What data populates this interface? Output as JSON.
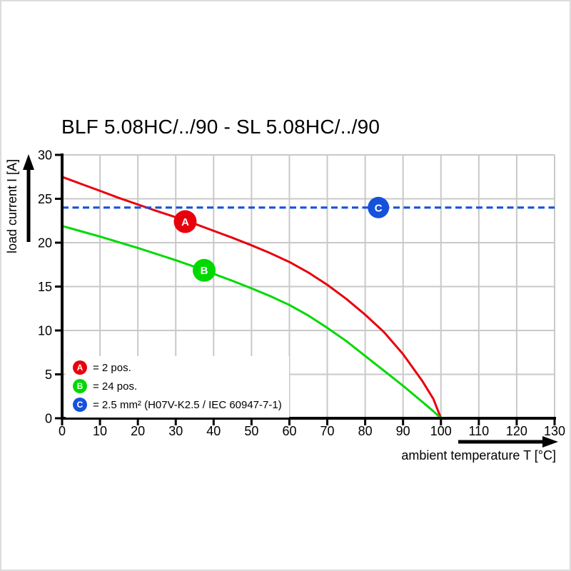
{
  "chart_data": {
    "type": "line",
    "title": "BLF 5.08HC/../90 - SL 5.08HC/../90",
    "xlabel": "ambient temperature T [°C]",
    "ylabel": "load current I [A]",
    "xlim": [
      0,
      130
    ],
    "ylim": [
      0,
      30
    ],
    "x_ticks": [
      0,
      10,
      20,
      30,
      40,
      50,
      60,
      70,
      80,
      90,
      100,
      110,
      120,
      130
    ],
    "y_ticks": [
      0,
      5,
      10,
      15,
      20,
      25,
      30
    ],
    "grid": true,
    "legend_position": "bottom-left-inside",
    "colors": {
      "series_a": "#e8000d",
      "series_b": "#00d900",
      "series_c": "#1651dc",
      "grid": "#c9c9c9",
      "axis": "#000000",
      "marker_letter": "#ffffff"
    },
    "series": [
      {
        "name": "A",
        "label": "= 2 pos.",
        "color": "#e8000d",
        "style": "solid",
        "x": [
          0,
          5,
          10,
          15,
          20,
          25,
          30,
          35,
          40,
          45,
          50,
          55,
          60,
          65,
          70,
          75,
          80,
          85,
          90,
          95,
          98,
          100
        ],
        "y": [
          27.5,
          26.7,
          25.9,
          25.1,
          24.35,
          23.6,
          22.9,
          22.15,
          21.35,
          20.55,
          19.7,
          18.8,
          17.8,
          16.6,
          15.2,
          13.6,
          11.8,
          9.8,
          7.3,
          4.3,
          2.2,
          0
        ],
        "marker": {
          "x": 32.5,
          "y": 22.4,
          "r": 16
        }
      },
      {
        "name": "B",
        "label": "= 24 pos.",
        "color": "#00d900",
        "style": "solid",
        "x": [
          0,
          5,
          10,
          15,
          20,
          25,
          30,
          35,
          40,
          45,
          50,
          55,
          60,
          65,
          70,
          75,
          80,
          85,
          90,
          95,
          98,
          100
        ],
        "y": [
          21.9,
          21.3,
          20.7,
          20.05,
          19.4,
          18.7,
          18.0,
          17.25,
          16.45,
          15.65,
          14.8,
          13.9,
          12.9,
          11.7,
          10.3,
          8.8,
          7.1,
          5.4,
          3.7,
          1.9,
          0.8,
          0
        ],
        "marker": {
          "x": 37.5,
          "y": 16.85,
          "r": 16
        }
      },
      {
        "name": "C",
        "label": "= 2.5 mm² (H07V-K2.5 / IEC 60947-7-1)",
        "color": "#1651dc",
        "style": "dashed",
        "y_const": 24,
        "marker": {
          "x": 83.5,
          "y": 24,
          "r": 15
        }
      }
    ]
  }
}
